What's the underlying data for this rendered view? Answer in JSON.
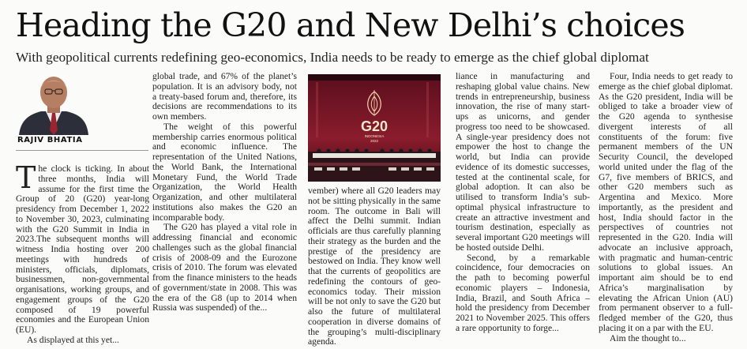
{
  "article": {
    "headline": "Heading the G20 and New Delhi’s choices",
    "deck": "With geopolitical currents redefining geo-economics, India needs to be ready to emerge as the chief global diplomat",
    "byline": "RAJIV BHATIA"
  },
  "image": {
    "logo_text": "G20",
    "logo_sub_1": "INDONESIA",
    "logo_sub_2": "2022"
  },
  "columns": {
    "col1": {
      "dropcap": "T",
      "p1": "he clock is ticking. In about three months, India will assume for the first time the Group of 20 (G20) year-long presidency from December 1, 2022 to November 30, 2023, culminating with the G20 Summit in India in 2023.The subsequent months will witness India hosting over 200 meetings with hundreds of ministers, officials, diplomats, businessmen, non-governmental organisations, working groups, and engagement groups of the G20 composed of 19 powerful economies and the European Union (EU).",
      "p2": "As displayed at this yet..."
    },
    "col2": {
      "p1": "global trade, and 67% of the planet’s population. It is an advisory body, not a treaty-based forum and, therefore, its decisions are recommendations to its own members.",
      "p2": "The weight of this powerful membership carries enormous political and economic influence. The representation of the United Nations, the World Bank, the International Monetary Fund, the World Trade Organization, the World Health Organization, and other multilateral institutions also makes the G20 an incomparable body.",
      "p3": "The G20 has played a vital role in addressing financial and economic challenges such as the global financial crisis of 2008-09 and the Eurozone crisis of 2010. The forum was elevated from the finance ministers to the heads of government/state in 2008. This was the era of the G8 (up to 2014 when Russia was suspended) of the..."
    },
    "col3": {
      "p1": "vember) where all G20 leaders may not be sitting physically in the same room. The outcome in Bali will affect the Delhi summit. Indian officials are thus carefully planning their strategy as the burden and the prestige of the presidency are bestowed on India. They know well that the currents of geopolitics are redefining the contours of geo-economics today. Their mission will be not only to save the G20 but also the future of multilateral cooperation in diverse domains of the grouping’s multi-disciplinary agenda."
    },
    "col4": {
      "p1": "liance in manufacturing and reshaping global value chains. New trends in entrepreneurship, business innovation, the rise of many start-ups as unicorns, and gender progress too need to be showcased. A single-year presidency does not empower the host to change the world, but India can provide evidence of its domestic successes, tested at the continental scale, for global adoption. It can also be utilised to transform India’s sub-optimal physical infrastructure to create an attractive investment and tourism destination, especially as several important G20 meetings will be hosted outside Delhi.",
      "p2": "Second, by a remarkable coincidence, four democracies on the path to becoming powerful economic players – Indonesia, India, Brazil, and South Africa – hold the presidency from December 2021 to November 2025. This offers a rare opportunity to forge..."
    },
    "col5": {
      "p1": "Four, India needs to get ready to emerge as the chief global diplomat. As the G20 president, India will be obliged to take a broader view of the G20 agenda to synthesise divergent interests of all constituents of the forum: five permanent members of the UN Security Council, the developed world united under the flag of the G7, five members of BRICS, and other G20 members such as Argentina and Mexico. More importantly, as the president and host, India should factor in the perspectives of countries not represented in the G20. India will advocate an inclusive approach, with pragmatic and human-centric solutions to global issues. An important aim should be to end Africa’s marginalisation by elevating the African Union (AU) from permanent observer to a full-fledged member of the G20, thus placing it on a par with the EU.",
      "p2": "Aim the thought to..."
    }
  }
}
